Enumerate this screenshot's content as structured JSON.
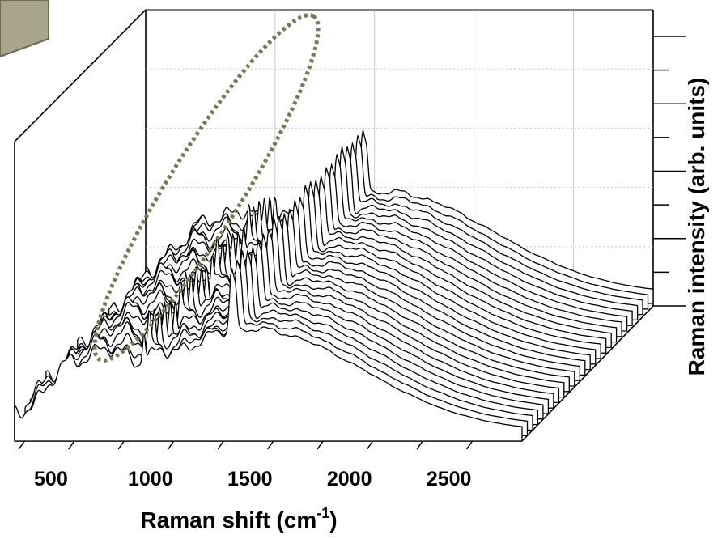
{
  "chart_data": {
    "type": "line",
    "subtype": "waterfall-3d",
    "title": "",
    "xlabel": "Raman shift (cm",
    "xlabel_superscript": "-1",
    "xlabel_suffix": ")",
    "ylabel": "Raman intensity (arb. units)",
    "x_ticks": [
      500,
      1000,
      1500,
      2000,
      2500
    ],
    "xlim": [
      350,
      2900
    ],
    "series_count": 26,
    "series_offset_step": 0.045,
    "features": {
      "peak_positions": [
        1000,
        1440,
        1460
      ],
      "peak_heights": [
        0.18,
        0.33,
        0.22
      ],
      "peak_widths": [
        10,
        14,
        12
      ],
      "broad_background_center": 1550,
      "highlighted_region": "dotted ellipse around 1000 cm-1 and 1440-1460 cm-1 peaks"
    },
    "grid": true,
    "legend": "none",
    "colors": {
      "lines": "#000000",
      "highlight": "#7a7658",
      "corner_box": "#a8a58a",
      "grid": "#bdbdbd"
    }
  }
}
